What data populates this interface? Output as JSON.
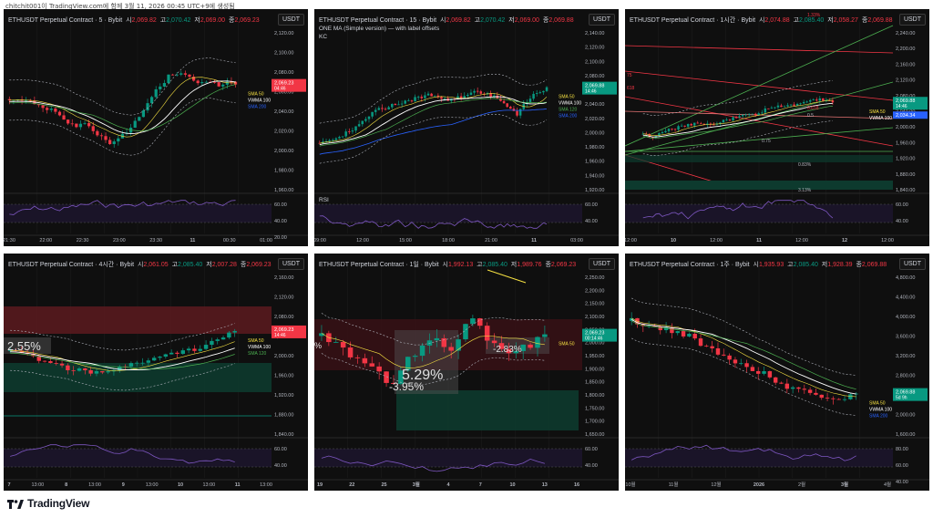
{
  "caption": "chitchit001이 TradingView.com에 함께 3월 11, 2026 00:45 UTC+9에 생성됨",
  "brand": "TradingView",
  "currency": "USDT",
  "colors": {
    "bg": "#0f0f0f",
    "up": "#089981",
    "down": "#f23645",
    "sma50": "#f5e042",
    "vwma100": "#ffffff",
    "sma120": "#4caf50",
    "sma200": "#2962ff",
    "rsi": "#7e57c2",
    "kc": "#b2b5be"
  },
  "panels": [
    {
      "id": "p5m",
      "title": "ETHUSDT Perpetual Contract · 5 · Bybit",
      "o": "2,069.82",
      "h": "2,070.42",
      "l": "2,069.00",
      "c": "2,069.23",
      "subtitles": [],
      "price_ticks": [
        "2,120.00",
        "2,100.00",
        "2,080.00",
        "2,060.00",
        "2,040.00",
        "2,020.00",
        "2,000.00",
        "1,980.00",
        "1,960.00"
      ],
      "price_tag": "2,069.23",
      "price_tag_sub": "04:46",
      "ma_labels": [
        "SMA 50",
        "VWMA 100",
        "SMA 200"
      ],
      "rsi_label": "",
      "rsi_ticks": [
        "60.00",
        "40.00",
        "20.00"
      ],
      "time_ticks": [
        "21:30",
        "22:00",
        "22:30",
        "23:00",
        "23:30",
        "11",
        "00:30",
        "01:00"
      ]
    },
    {
      "id": "p15m",
      "title": "ETHUSDT Perpetual Contract · 15 · Bybit",
      "o": "2,069.82",
      "h": "2,070.42",
      "l": "2,069.00",
      "c": "2,069.88",
      "subtitles": [
        "ONE MA (Simple version) — with label offsets",
        "KC"
      ],
      "price_ticks": [
        "2,140.00",
        "2,120.00",
        "2,100.00",
        "2,080.00",
        "2,060.00",
        "2,040.00",
        "2,020.00",
        "2,000.00",
        "1,980.00",
        "1,960.00",
        "1,940.00",
        "1,920.00"
      ],
      "price_tag": "2,069.88",
      "price_tag_sub": "14:46",
      "ma_labels": [
        "SMA 50",
        "VWMA 100",
        "SMA 120",
        "SMA 200"
      ],
      "rsi_label": "RSI",
      "rsi_ticks": [
        "60.00",
        "40.00"
      ],
      "time_ticks": [
        "09:00",
        "12:00",
        "15:00",
        "18:00",
        "21:00",
        "11",
        "03:00"
      ]
    },
    {
      "id": "p1h",
      "title": "ETHUSDT Perpetual Contract · 1시간 · Bybit",
      "o": "2,074.88",
      "h": "2,085.40",
      "l": "2,058.27",
      "c": "2,069.88",
      "subtitles": [],
      "price_ticks": [
        "2,240.00",
        "2,200.00",
        "2,160.00",
        "2,120.00",
        "2,080.00",
        "2,040.00",
        "2,000.00",
        "1,960.00",
        "1,920.00",
        "1,880.00",
        "1,840.00"
      ],
      "price_tag": "2,069.88",
      "price_tag_sub": "14:46",
      "second_tag": "2,034.34",
      "fib_labels": [
        "1.33%",
        "0.618",
        "0.5",
        "0.75",
        "0.83%",
        "3.13%",
        "75",
        "618"
      ],
      "ma_labels": [
        "SMA 50",
        "VWMA 100"
      ],
      "rsi_label": "",
      "rsi_ticks": [
        "60.00",
        "40.00"
      ],
      "time_ticks": [
        "12:00",
        "10",
        "12:00",
        "11",
        "12:00",
        "12",
        "12:00"
      ]
    },
    {
      "id": "p4h",
      "title": "ETHUSDT Perpetual Contract · 4시간 · Bybit",
      "o": "2,061.05",
      "h": "2,085.40",
      "l": "2,007.28",
      "c": "2,069.23",
      "subtitles": [],
      "price_ticks": [
        "2,160.00",
        "2,120.00",
        "2,080.00",
        "2,040.00",
        "2,000.00",
        "1,960.00",
        "1,920.00",
        "1,880.00",
        "1,840.00"
      ],
      "price_tag": "2,069.23",
      "price_tag_sub": "14:46",
      "big_label": "2.55%",
      "ma_labels": [
        "SMA 50",
        "VWMA 100",
        "SMA 120"
      ],
      "rsi_label": "",
      "rsi_ticks": [
        "60.00",
        "40.00"
      ],
      "time_ticks": [
        "7",
        "13:00",
        "8",
        "13:00",
        "9",
        "13:00",
        "10",
        "13:00",
        "11",
        "13:00"
      ]
    },
    {
      "id": "p1d",
      "title": "ETHUSDT Perpetual Contract · 1일 · Bybit",
      "o": "1,992.13",
      "h": "2,085.40",
      "l": "1,989.76",
      "c": "2,069.23",
      "subtitles": [],
      "price_ticks": [
        "2,250.00",
        "2,200.00",
        "2,150.00",
        "2,100.00",
        "2,050.00",
        "2,000.00",
        "1,950.00",
        "1,900.00",
        "1,850.00",
        "1,800.00",
        "1,750.00",
        "1,700.00",
        "1,650.00"
      ],
      "price_tag": "2,069.23",
      "price_tag_sub": "00:14:46",
      "big_labels": [
        "-2.83%",
        "5.29%",
        "-3.95%",
        "%"
      ],
      "ma_labels": [
        "SMA 50"
      ],
      "rsi_label": "",
      "rsi_ticks": [
        "60.00",
        "40.00"
      ],
      "time_ticks": [
        "19",
        "22",
        "25",
        "3월",
        "4",
        "7",
        "10",
        "13",
        "16"
      ]
    },
    {
      "id": "p1w",
      "title": "ETHUSDT Perpetual Contract · 1주 · Bybit",
      "o": "1,935.93",
      "h": "2,085.40",
      "l": "1,928.39",
      "c": "2,069.88",
      "subtitles": [],
      "price_ticks": [
        "4,800.00",
        "4,400.00",
        "4,000.00",
        "3,600.00",
        "3,200.00",
        "2,800.00",
        "2,400.00",
        "2,000.00",
        "1,600.00"
      ],
      "price_tag": "2,069.88",
      "price_tag_sub": "5d 9h",
      "ma_labels": [
        "SMA 50",
        "VWMA 100",
        "SMA 200"
      ],
      "rsi_label": "",
      "rsi_ticks": [
        "80.00",
        "60.00",
        "40.00"
      ],
      "time_ticks": [
        "10월",
        "11월",
        "12월",
        "2026",
        "2월",
        "3월",
        "4월"
      ]
    }
  ]
}
